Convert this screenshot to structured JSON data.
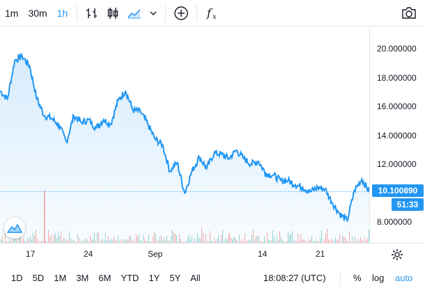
{
  "toolbar": {
    "intervals": [
      "1m",
      "30m",
      "1h"
    ],
    "active_interval": "1h",
    "icons": [
      "bars-icon",
      "candles-icon",
      "area-chart-icon",
      "chevron-down-icon",
      "add-compare-icon",
      "indicators-fx-icon",
      "camera-icon"
    ]
  },
  "chart_data": {
    "type": "area",
    "ylim": [
      6.4,
      22.0
    ],
    "y_ticks": [
      "20.000000",
      "18.000000",
      "16.000000",
      "14.000000",
      "12.000000",
      "10.000000",
      "8.000000"
    ],
    "x_ticks": [
      "17",
      "24",
      "Sep",
      "14",
      "21"
    ],
    "series": [
      {
        "x": [
          0,
          2,
          4,
          6,
          8,
          10,
          12,
          14,
          16,
          18,
          20,
          22,
          24,
          26,
          28,
          30,
          32,
          34,
          36,
          38,
          40,
          42,
          44,
          46,
          48,
          50,
          52,
          54,
          56,
          58,
          60,
          62,
          64,
          66,
          68,
          70,
          72,
          74,
          76,
          78,
          80,
          82,
          84,
          86,
          88,
          90,
          92,
          94,
          96,
          98,
          100
        ],
        "values": [
          17.4,
          16.8,
          19.6,
          19.9,
          19.2,
          16.8,
          15.6,
          15.4,
          14.9,
          13.7,
          15.6,
          15.1,
          15.3,
          14.7,
          15.3,
          15.0,
          16.7,
          17.4,
          16.0,
          15.9,
          15.0,
          13.9,
          13.5,
          11.6,
          12.2,
          10.0,
          11.6,
          12.6,
          11.8,
          12.9,
          12.8,
          12.5,
          13.1,
          12.5,
          12.1,
          12.3,
          11.4,
          11.3,
          10.9,
          10.9,
          10.6,
          10.4,
          10.1,
          10.4,
          10.3,
          9.3,
          8.5,
          8.0,
          10.2,
          11.0,
          10.1
        ]
      }
    ],
    "current_price": "10.100890",
    "countdown": "51:33"
  },
  "ranges": [
    "1D",
    "5D",
    "1M",
    "3M",
    "6M",
    "YTD",
    "1Y",
    "5Y",
    "All"
  ],
  "status": {
    "time": "18:08:27 (UTC)",
    "percent_label": "%",
    "log_label": "log",
    "auto_label": "auto"
  },
  "colors": {
    "line": "#2196f3",
    "accent": "#2196f3",
    "volume_up": "#26a69a",
    "volume_down": "#ef5350"
  }
}
